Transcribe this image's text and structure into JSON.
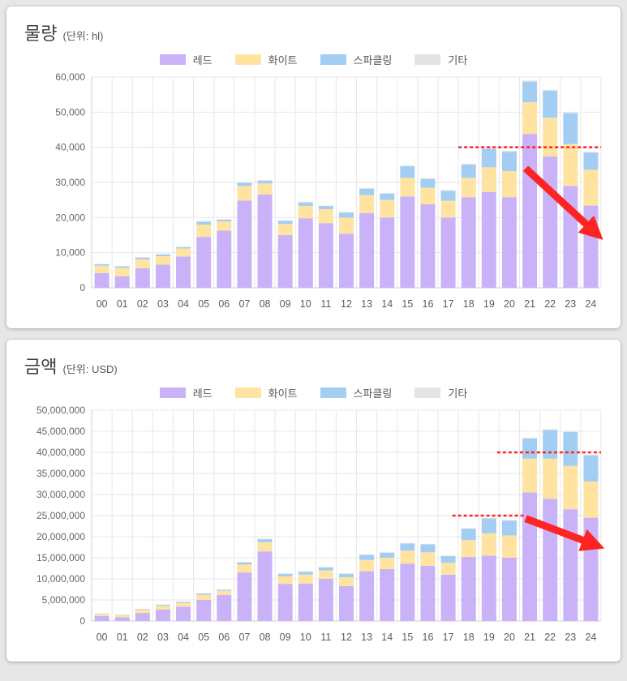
{
  "chart_data": [
    {
      "id": "volume",
      "type": "bar",
      "stacked": true,
      "grid": true,
      "legend_position": "top",
      "title": "물량",
      "unit_label": "(단위: hl)",
      "ylim": [
        0,
        60000
      ],
      "ytick_step": 10000,
      "categories": [
        "00",
        "01",
        "02",
        "03",
        "04",
        "05",
        "06",
        "07",
        "08",
        "09",
        "10",
        "11",
        "12",
        "13",
        "14",
        "15",
        "16",
        "17",
        "18",
        "19",
        "20",
        "21",
        "22",
        "23",
        "24"
      ],
      "series": [
        {
          "name": "레드",
          "color": "#c9b2f8",
          "values": [
            4200,
            3300,
            5600,
            6600,
            8900,
            14500,
            16300,
            24800,
            26600,
            15000,
            19800,
            18400,
            15400,
            21300,
            20000,
            26000,
            23800,
            20000,
            25800,
            27300,
            25800,
            43800,
            37400,
            29000,
            23400
          ]
        },
        {
          "name": "화이트",
          "color": "#ffe3a1",
          "values": [
            2100,
            2400,
            2500,
            2400,
            2300,
            3500,
            2600,
            4200,
            3100,
            3200,
            3500,
            4000,
            4600,
            5100,
            5000,
            5300,
            4700,
            4800,
            5500,
            7000,
            7400,
            9000,
            11000,
            11900,
            10200
          ]
        },
        {
          "name": "스파클링",
          "color": "#a3cdf3",
          "values": [
            400,
            400,
            500,
            500,
            400,
            800,
            500,
            900,
            800,
            900,
            1000,
            900,
            1400,
            1800,
            1800,
            3300,
            2500,
            2800,
            3800,
            5200,
            5500,
            5900,
            7700,
            8800,
            4900
          ]
        },
        {
          "name": "기타",
          "color": "#e4e4e6",
          "values": [
            100,
            100,
            100,
            100,
            100,
            200,
            100,
            100,
            200,
            100,
            200,
            100,
            200,
            200,
            200,
            200,
            200,
            200,
            200,
            300,
            300,
            300,
            300,
            300,
            200
          ]
        }
      ],
      "annotations": {
        "color": "#ff2424",
        "dotted_lines": [
          {
            "y": 40000,
            "x_from": 17.5,
            "x_to": 24.5
          }
        ],
        "arrows": [
          {
            "x_from": 20.8,
            "y_from": 34000,
            "x_to": 24.35,
            "y_to": 15000
          }
        ]
      }
    },
    {
      "id": "amount",
      "type": "bar",
      "stacked": true,
      "grid": true,
      "legend_position": "top",
      "title": "금액",
      "unit_label": "(단위: USD)",
      "ylim": [
        0,
        50000000
      ],
      "ytick_step": 5000000,
      "categories": [
        "00",
        "01",
        "02",
        "03",
        "04",
        "05",
        "06",
        "07",
        "08",
        "09",
        "10",
        "11",
        "12",
        "13",
        "14",
        "15",
        "16",
        "17",
        "18",
        "19",
        "20",
        "21",
        "22",
        "23",
        "24"
      ],
      "series": [
        {
          "name": "레드",
          "color": "#c9b2f8",
          "values": [
            1200000,
            900000,
            1900000,
            2700000,
            3400000,
            5000000,
            6200000,
            11500000,
            16500000,
            8800000,
            8900000,
            10000000,
            8300000,
            11800000,
            12300000,
            13600000,
            13100000,
            11000000,
            15200000,
            15500000,
            15000000,
            30500000,
            29000000,
            26500000,
            24500000
          ]
        },
        {
          "name": "화이트",
          "color": "#ffe3a1",
          "values": [
            450000,
            450000,
            800000,
            900000,
            900000,
            1200000,
            1000000,
            1900000,
            2200000,
            1800000,
            2100000,
            2000000,
            2100000,
            2700000,
            2700000,
            3100000,
            3200000,
            2800000,
            4000000,
            5300000,
            5300000,
            8000000,
            9500000,
            10300000,
            8600000
          ]
        },
        {
          "name": "스파클링",
          "color": "#a3cdf3",
          "values": [
            120000,
            120000,
            150000,
            250000,
            250000,
            350000,
            250000,
            550000,
            700000,
            600000,
            700000,
            700000,
            800000,
            1200000,
            1200000,
            1700000,
            1900000,
            1600000,
            2700000,
            3500000,
            3500000,
            4800000,
            6800000,
            8000000,
            6200000
          ]
        },
        {
          "name": "기타",
          "color": "#e4e4e6",
          "values": [
            30000,
            30000,
            50000,
            50000,
            50000,
            50000,
            50000,
            50000,
            100000,
            100000,
            100000,
            100000,
            100000,
            100000,
            100000,
            100000,
            100000,
            100000,
            100000,
            200000,
            200000,
            200000,
            200000,
            200000,
            200000
          ]
        }
      ],
      "annotations": {
        "color": "#ff2424",
        "dotted_lines": [
          {
            "y": 25000000,
            "x_from": 17.2,
            "x_to": 20.7
          },
          {
            "y": 40000000,
            "x_from": 19.4,
            "x_to": 24.5
          }
        ],
        "arrows": [
          {
            "x_from": 20.8,
            "y_from": 24300000,
            "x_to": 24.35,
            "y_to": 17800000
          }
        ]
      }
    }
  ]
}
